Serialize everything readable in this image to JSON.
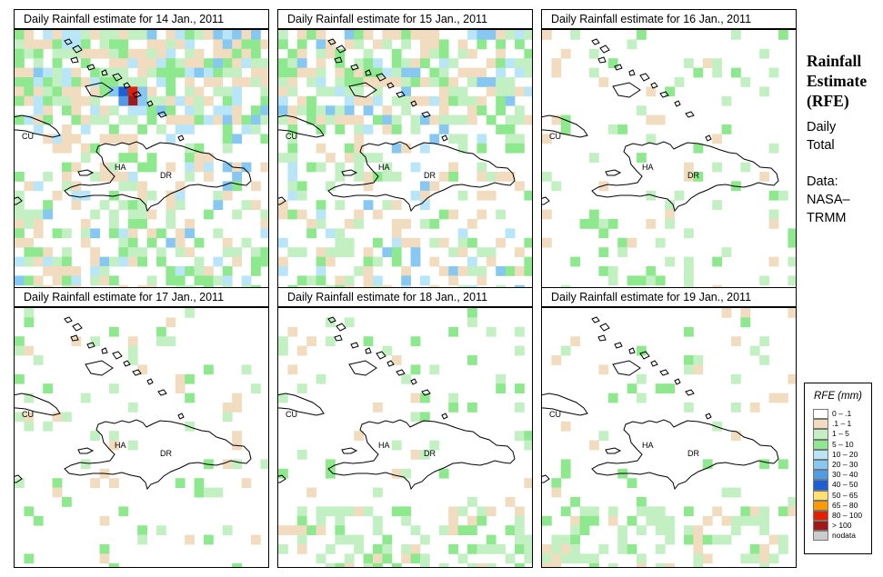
{
  "panels": [
    {
      "title": "Daily Rainfall estimate for  14 Jan., 2011",
      "date": "14 Jan., 2011",
      "intensity": 0.55,
      "peak": true,
      "seed": 14,
      "bias": "north-south"
    },
    {
      "title": "Daily Rainfall estimate for  15 Jan., 2011",
      "date": "15 Jan., 2011",
      "intensity": 0.45,
      "peak": false,
      "seed": 15,
      "bias": "north-south"
    },
    {
      "title": "Daily Rainfall estimate for  16 Jan., 2011",
      "date": "16 Jan., 2011",
      "intensity": 0.12,
      "peak": false,
      "seed": 16,
      "bias": "none"
    },
    {
      "title": "Daily Rainfall estimate for  17 Jan., 2011",
      "date": "17 Jan., 2011",
      "intensity": 0.09,
      "peak": false,
      "seed": 17,
      "bias": "none"
    },
    {
      "title": "Daily Rainfall estimate for  18 Jan., 2011",
      "date": "18 Jan., 2011",
      "intensity": 0.18,
      "peak": false,
      "seed": 18,
      "bias": "south"
    },
    {
      "title": "Daily Rainfall estimate for  19 Jan., 2011",
      "date": "19 Jan., 2011",
      "intensity": 0.16,
      "peak": false,
      "seed": 19,
      "bias": "south"
    }
  ],
  "map_labels": {
    "cuba": "CU",
    "haiti": "HA",
    "dominican_republic": "DR"
  },
  "sidebar": {
    "title_lines": [
      "Rainfall",
      "Estimate",
      "(RFE)"
    ],
    "period_lines": [
      "Daily",
      "Total"
    ],
    "source_lines": [
      "Data:",
      "NASA–",
      "TRMM"
    ]
  },
  "legend": {
    "title": "RFE (mm)",
    "items": [
      {
        "label": "0 – .1",
        "color": "#ffffff"
      },
      {
        "label": ".1 – 1",
        "color": "#f1dcc0"
      },
      {
        "label": "1 – 5",
        "color": "#c2f0c2"
      },
      {
        "label": "5 – 10",
        "color": "#8ee88e"
      },
      {
        "label": "10 – 20",
        "color": "#b8e6f8"
      },
      {
        "label": "20 – 30",
        "color": "#86c8f2"
      },
      {
        "label": "30 – 40",
        "color": "#4f9be8"
      },
      {
        "label": "40 – 50",
        "color": "#1f5fd6"
      },
      {
        "label": "50 – 65",
        "color": "#ffe070"
      },
      {
        "label": "65 – 80",
        "color": "#ff9a00"
      },
      {
        "label": "80 – 100",
        "color": "#e02000"
      },
      {
        "label": "> 100",
        "color": "#a01818"
      },
      {
        "label": "nodata",
        "color": "#cccccc"
      }
    ]
  }
}
